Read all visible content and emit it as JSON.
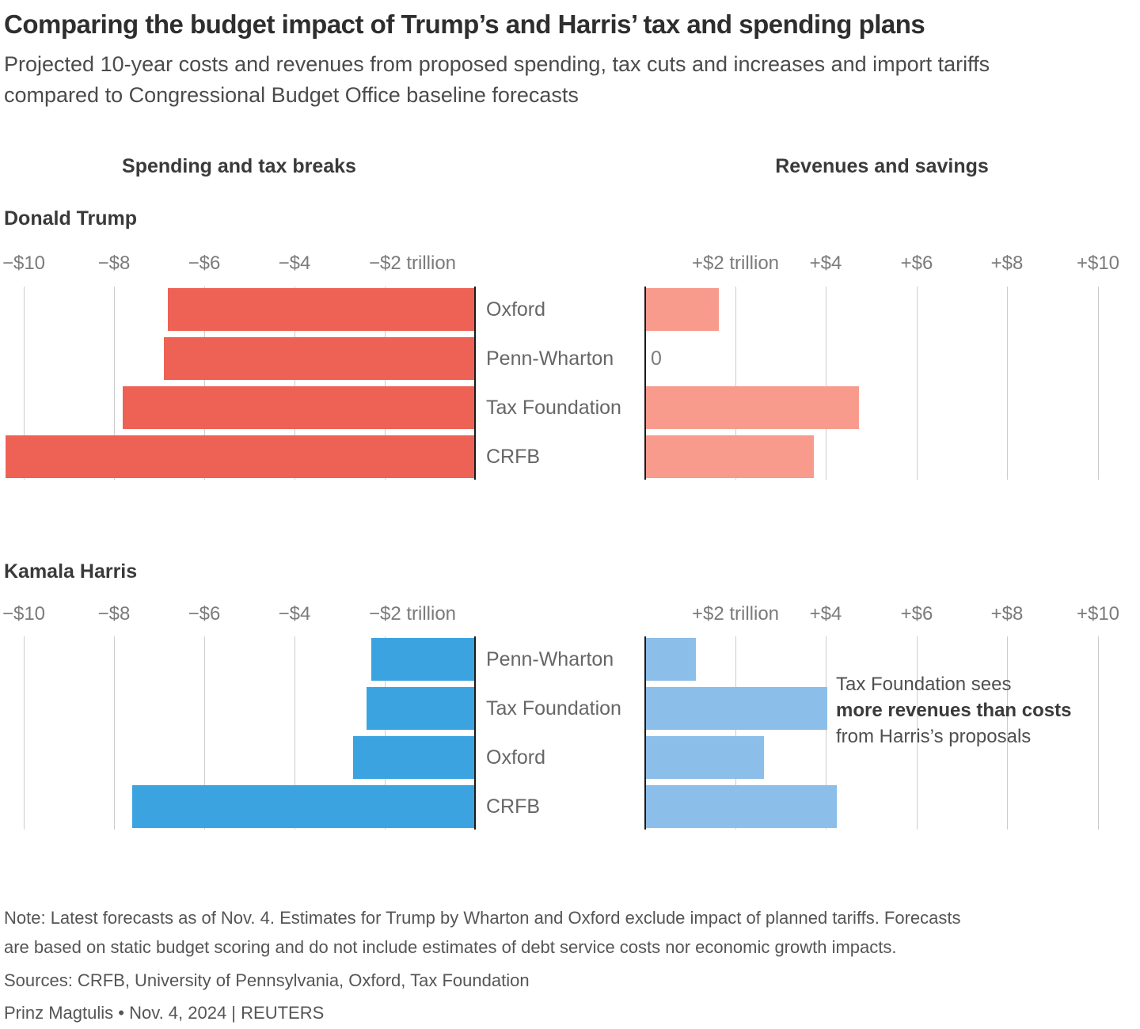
{
  "title": "Comparing the budget impact of Trump’s and Harris’ tax and spending plans",
  "subtitle": "Projected 10-year costs and revenues from proposed spending, tax cuts and increases and import tariffs compared to Congressional Budget Office baseline forecasts",
  "column_headers": {
    "spending": "Spending and tax breaks",
    "revenues": "Revenues and savings"
  },
  "chart_data": {
    "type": "bar",
    "orientation": "horizontal",
    "unit": "trillions of US dollars over 10 years",
    "grid": true,
    "x_axis": {
      "left_ticks": [
        "−$10",
        "−$8",
        "−$6",
        "−$4",
        "−$2 trillion"
      ],
      "left_tick_values": [
        -10,
        -8,
        -6,
        -4,
        -2
      ],
      "left_range": [
        -10.5,
        0
      ],
      "right_ticks": [
        "+$2 trillion",
        "+$4",
        "+$6",
        "+$8",
        "+$10"
      ],
      "right_tick_values": [
        2,
        4,
        6,
        8,
        10
      ],
      "right_range": [
        0,
        10.9
      ]
    },
    "zero_label": "0",
    "sections": [
      {
        "label": "Donald Trump",
        "categories": [
          "Oxford",
          "Penn-Wharton",
          "Tax Foundation",
          "CRFB"
        ],
        "series": [
          {
            "name": "Spending and tax breaks",
            "values": [
              -6.8,
              -6.9,
              -7.8,
              -10.4
            ],
            "color": "#EE6255"
          },
          {
            "name": "Revenues and savings",
            "values": [
              1.6,
              0,
              4.7,
              3.7
            ],
            "color": "#F89B8D"
          }
        ]
      },
      {
        "label": "Kamala Harris",
        "categories": [
          "Penn-Wharton",
          "Tax Foundation",
          "Oxford",
          "CRFB"
        ],
        "series": [
          {
            "name": "Spending and tax breaks",
            "values": [
              -2.3,
              -2.4,
              -2.7,
              -7.6
            ],
            "color": "#3BA3E0"
          },
          {
            "name": "Revenues and savings",
            "values": [
              1.1,
              4.0,
              2.6,
              4.2
            ],
            "color": "#8BBEE9"
          }
        ]
      }
    ],
    "annotation": {
      "lines": [
        "Tax Foundation sees",
        "more revenues than costs",
        "from Harris’s proposals"
      ],
      "bold_line_index": 1
    }
  },
  "colors": {
    "trump_spending": "#EE6255",
    "trump_revenue": "#F89B8D",
    "harris_spending": "#3BA3E0",
    "harris_revenue": "#8BBEE9",
    "gridline": "#cccccc",
    "zero_axis": "#1a1a1a"
  },
  "footer": {
    "note_lines": [
      "Note: Latest forecasts as of Nov. 4. Estimates for Trump by Wharton and Oxford exclude impact of planned tariffs. Forecasts",
      "are based on static budget scoring and do not include estimates of debt service costs nor economic growth impacts."
    ],
    "sources": "Sources: CRFB, University of Pennsylvania, Oxford, Tax Foundation",
    "credit": "Prinz Magtulis • Nov. 4, 2024 | REUTERS"
  }
}
